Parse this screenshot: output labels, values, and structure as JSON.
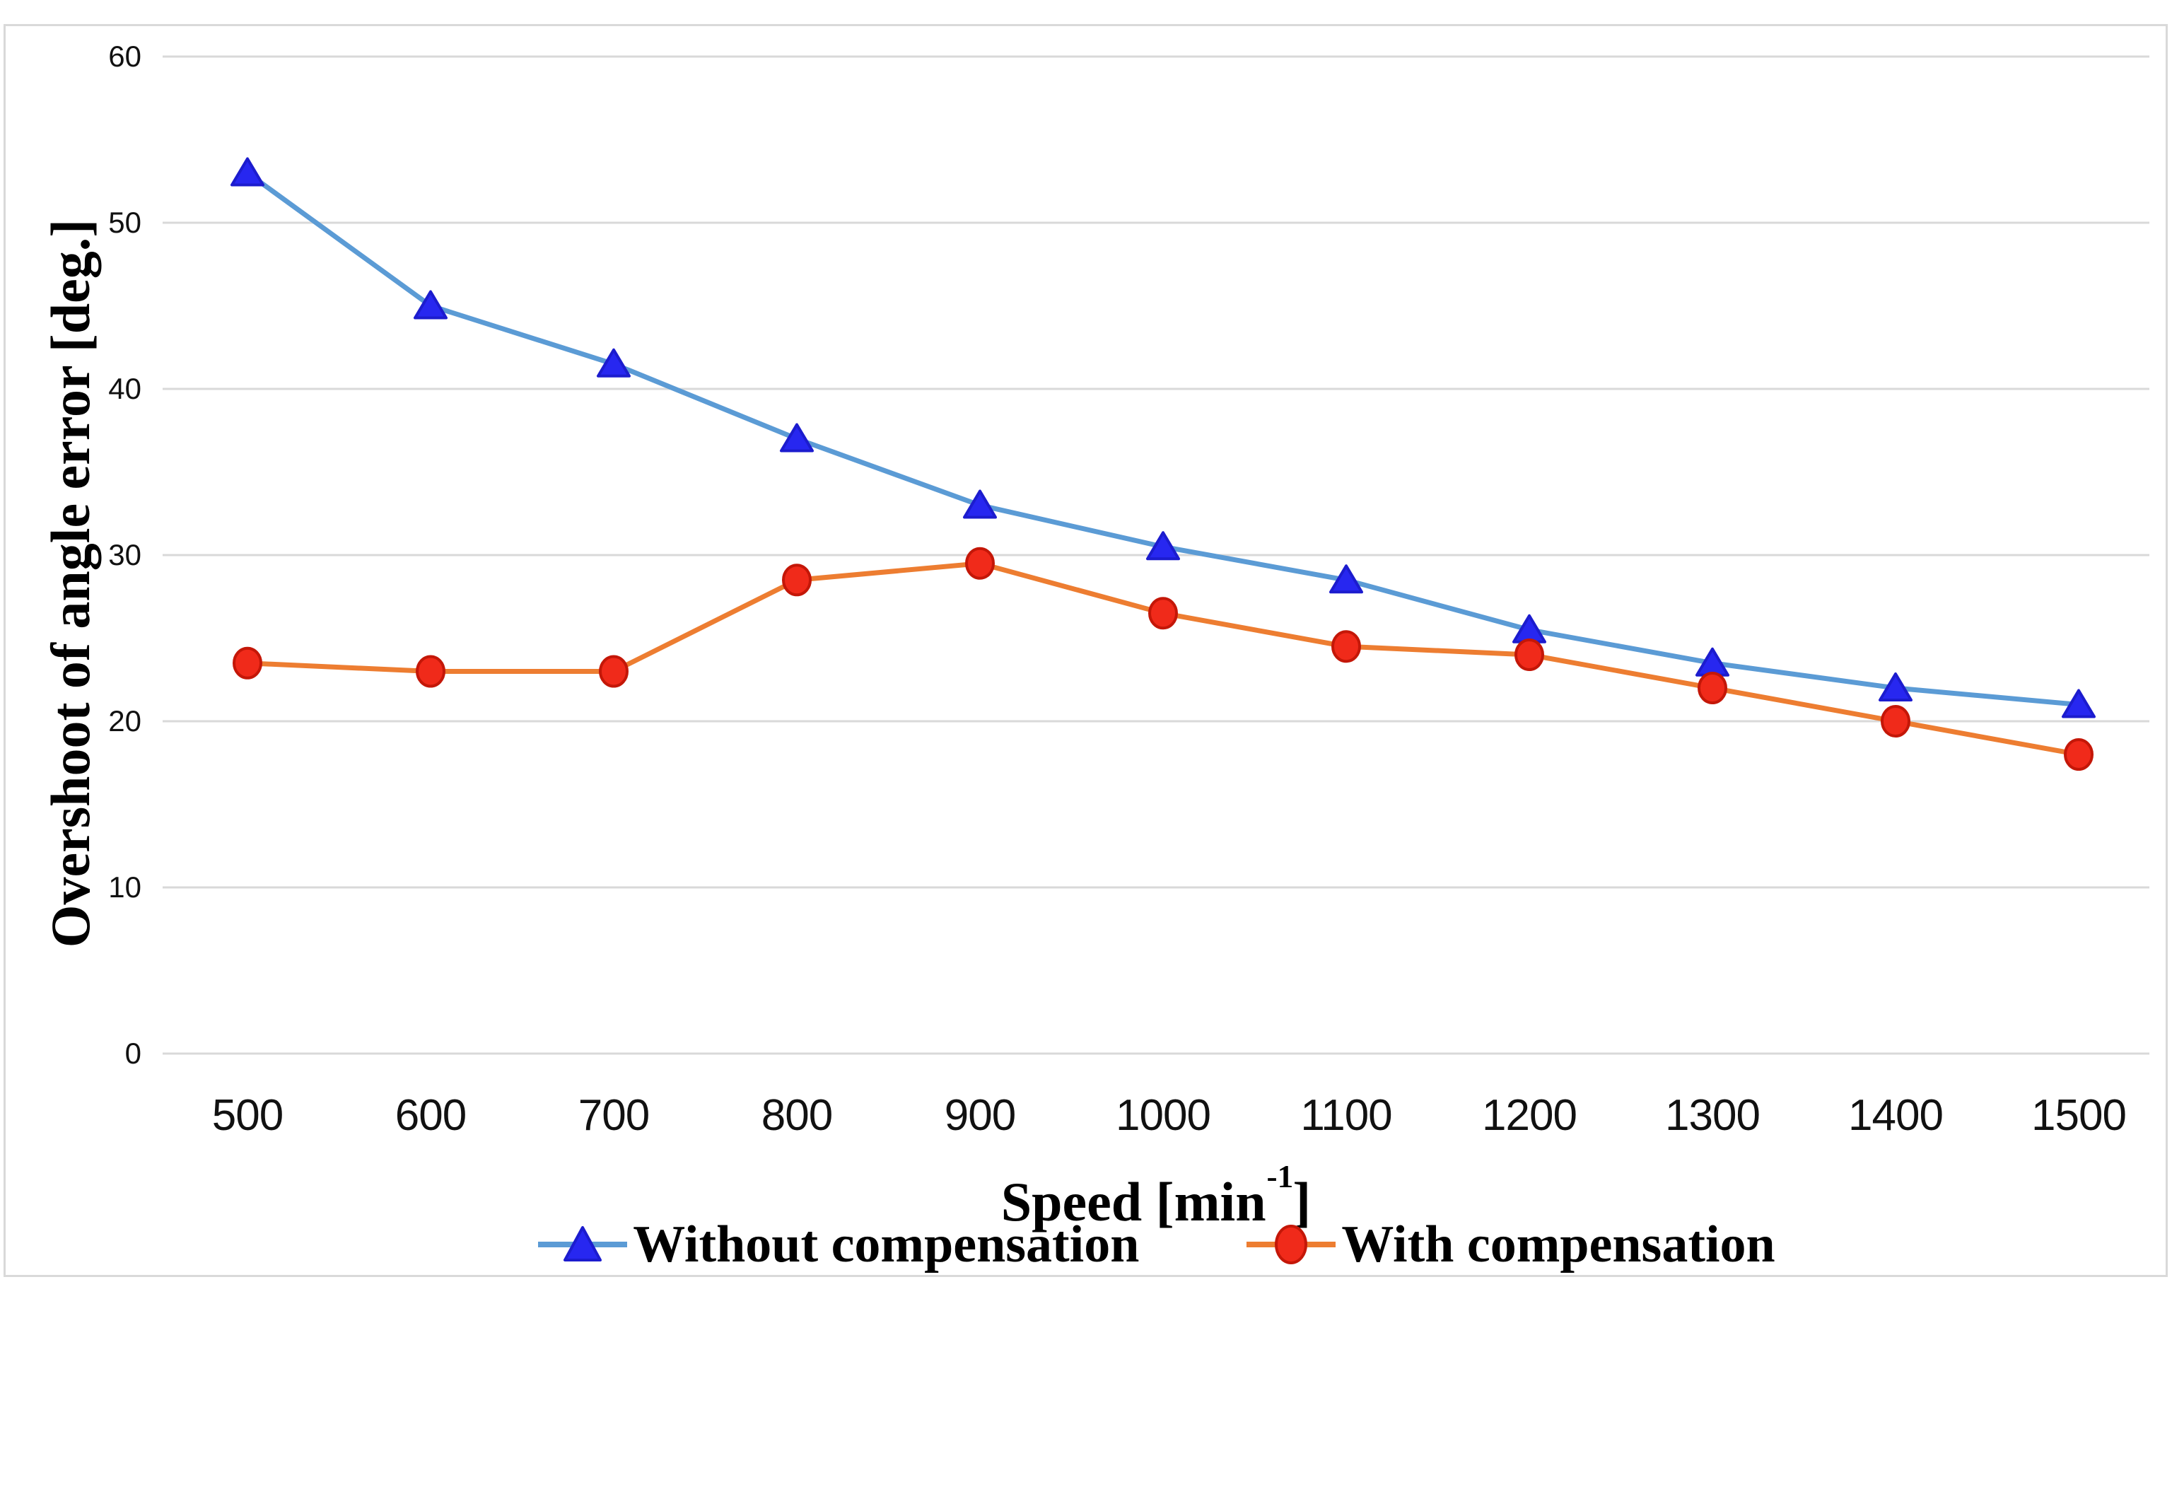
{
  "chart_data": {
    "type": "line",
    "title": "",
    "xlabel": "Speed [min-1]",
    "x_axis_title": {
      "prefix": "Speed [min",
      "sup": "-1",
      "suffix": "]"
    },
    "ylabel": "Overshoot of angle error [deg.]",
    "x": [
      500,
      600,
      700,
      800,
      900,
      1000,
      1100,
      1200,
      1300,
      1400,
      1500
    ],
    "x_tick_labels": [
      "500",
      "600",
      "700",
      "800",
      "900",
      "1000",
      "1100",
      "1200",
      "1300",
      "1400",
      "1500"
    ],
    "y_tick_labels": [
      "60",
      "50",
      "40",
      "30",
      "20",
      "10",
      "0"
    ],
    "ylim": [
      0,
      60
    ],
    "ytick_step": 10,
    "grid": true,
    "legend_position": "bottom",
    "series": [
      {
        "name": "Without compensation",
        "marker": "triangle",
        "line_color": "#5B9BD5",
        "marker_color": "#2727F0",
        "marker_edge": "#1C1CCE",
        "values": [
          53,
          45,
          41.5,
          37,
          33,
          30.5,
          28.5,
          25.5,
          23.5,
          22,
          21
        ]
      },
      {
        "name": "With compensation",
        "marker": "circle",
        "line_color": "#ED7D31",
        "marker_color": "#F02A1A",
        "marker_edge": "#C41708",
        "values": [
          23.5,
          23,
          23,
          28.5,
          29.5,
          26.5,
          24.5,
          24,
          22,
          20,
          18
        ]
      }
    ]
  },
  "colors": {
    "gridline": "#D9D9D9",
    "frame_border": "#D9D9D9",
    "background": "#FFFFFF",
    "tick_text": "#111111",
    "title_text": "#000000"
  }
}
